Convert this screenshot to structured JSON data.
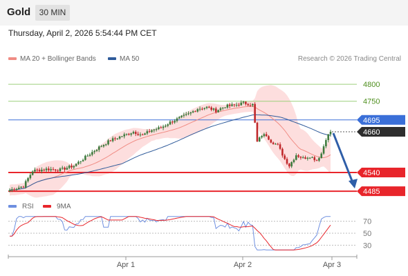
{
  "header": {
    "title": "Gold",
    "timeframe_button": "30 MIN"
  },
  "timestamp": "Thursday, April 2, 2026 5:54:44 PM CET",
  "legend": {
    "ma20": {
      "label": "MA 20 + Bollinger Bands",
      "color": "#f08c84"
    },
    "ma50": {
      "label": "MA 50",
      "color": "#2f5b9a"
    }
  },
  "credit": "Research © 2026 Trading Central",
  "colors": {
    "up": "#3d7a3d",
    "down": "#c0282b",
    "band": "#fcd6d6",
    "resistance": "#9ccf7a",
    "support": "#e8252b",
    "pivot": "#3a6fd8",
    "current": "#2e2e2e",
    "arrow": "#2f5ea8",
    "rsi": "#6e8fe0",
    "rsi_ma": "#e8252b"
  },
  "chart_data": {
    "type": "candlestick",
    "x_ticks": [
      "Apr 1",
      "Apr 2",
      "Apr 3"
    ],
    "ylim": [
      4475,
      4845
    ],
    "levels": [
      {
        "label": "4800",
        "value": 4800,
        "kind": "resistance"
      },
      {
        "label": "4750",
        "value": 4750,
        "kind": "resistance"
      },
      {
        "label": "4695",
        "value": 4695,
        "kind": "pivot"
      },
      {
        "label": "4660",
        "value": 4660,
        "kind": "current"
      },
      {
        "label": "4540",
        "value": 4540,
        "kind": "support"
      },
      {
        "label": "4485",
        "value": 4485,
        "kind": "support"
      }
    ],
    "projection": {
      "from": 4660,
      "to": 4485
    },
    "rsi": {
      "legend": [
        "RSI",
        "9MA"
      ],
      "ticks": [
        "70",
        "50",
        "30"
      ],
      "ylim": [
        20,
        80
      ]
    }
  }
}
